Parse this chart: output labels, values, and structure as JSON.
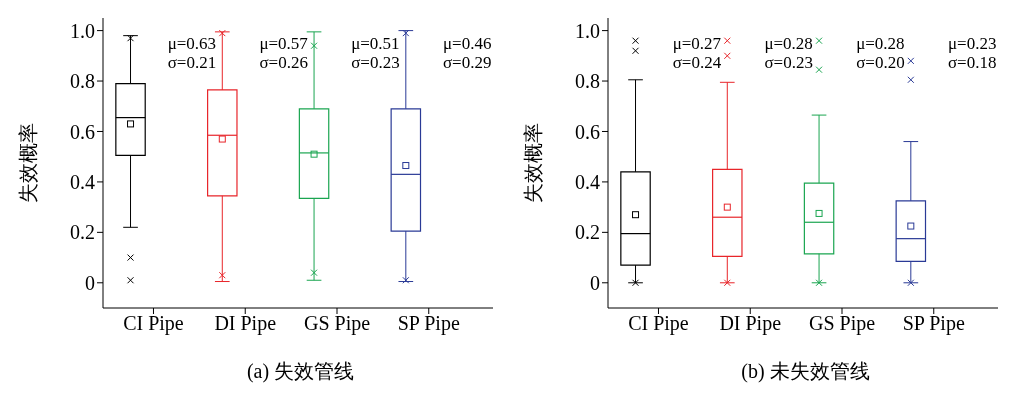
{
  "chart_data": [
    {
      "type": "box",
      "title": "(a) 失效管线",
      "ylabel": "失效概率",
      "categories": [
        "CI Pipe",
        "DI Pipe",
        "GS Pipe",
        "SP Pipe"
      ],
      "colors": [
        "#000000",
        "#e8252a",
        "#1aa550",
        "#2a3a96"
      ],
      "ylim": [
        -0.1,
        1.05
      ],
      "yticks": [
        0,
        0.2,
        0.4,
        0.6,
        0.8,
        {
          "value": 1,
          "label": "1.0"
        }
      ],
      "grid": false,
      "legend": false,
      "boxes": [
        {
          "low": 0.22,
          "q1": 0.505,
          "median": 0.655,
          "q3": 0.79,
          "high": 0.98,
          "mean": 0.63,
          "outliers": [
            0.97,
            0.1,
            0.01
          ]
        },
        {
          "low": 0.005,
          "q1": 0.345,
          "median": 0.585,
          "q3": 0.765,
          "high": 0.995,
          "mean": 0.57,
          "outliers": [
            0.99,
            0.03
          ]
        },
        {
          "low": 0.01,
          "q1": 0.335,
          "median": 0.515,
          "q3": 0.69,
          "high": 0.995,
          "mean": 0.51,
          "outliers": [
            0.94,
            0.04
          ]
        },
        {
          "low": 0.005,
          "q1": 0.205,
          "median": 0.43,
          "q3": 0.69,
          "high": 1.0,
          "mean": 0.465,
          "outliers": [
            0.99,
            0.01
          ]
        }
      ],
      "annotations": [
        "μ=0.63",
        "σ=0.21",
        "μ=0.57",
        "σ=0.26",
        "μ=0.51",
        "σ=0.23",
        "μ=0.46",
        "σ=0.29"
      ]
    },
    {
      "type": "box",
      "title": "(b) 未失效管线",
      "ylabel": "失效概率",
      "categories": [
        "CI Pipe",
        "DI Pipe",
        "GS Pipe",
        "SP Pipe"
      ],
      "colors": [
        "#000000",
        "#e8252a",
        "#1aa550",
        "#2a3a96"
      ],
      "ylim": [
        -0.1,
        1.05
      ],
      "yticks": [
        0,
        0.2,
        0.4,
        0.6,
        0.8,
        {
          "value": 1,
          "label": "1.0"
        }
      ],
      "grid": false,
      "legend": false,
      "boxes": [
        {
          "low": 0.0,
          "q1": 0.07,
          "median": 0.195,
          "q3": 0.44,
          "high": 0.805,
          "mean": 0.27,
          "outliers": [
            0.96,
            0.92,
            0.0
          ]
        },
        {
          "low": 0.0,
          "q1": 0.105,
          "median": 0.26,
          "q3": 0.45,
          "high": 0.795,
          "mean": 0.3,
          "outliers": [
            0.96,
            0.9,
            0.0
          ]
        },
        {
          "low": 0.0,
          "q1": 0.115,
          "median": 0.24,
          "q3": 0.395,
          "high": 0.665,
          "mean": 0.275,
          "outliers": [
            0.96,
            0.845,
            0.0
          ]
        },
        {
          "low": 0.0,
          "q1": 0.085,
          "median": 0.175,
          "q3": 0.325,
          "high": 0.56,
          "mean": 0.225,
          "outliers": [
            0.88,
            0.805,
            0.0
          ]
        }
      ],
      "annotations": [
        "μ=0.27",
        "σ=0.24",
        "μ=0.28",
        "σ=0.23",
        "μ=0.28",
        "σ=0.20",
        "μ=0.23",
        "σ=0.18"
      ]
    }
  ]
}
